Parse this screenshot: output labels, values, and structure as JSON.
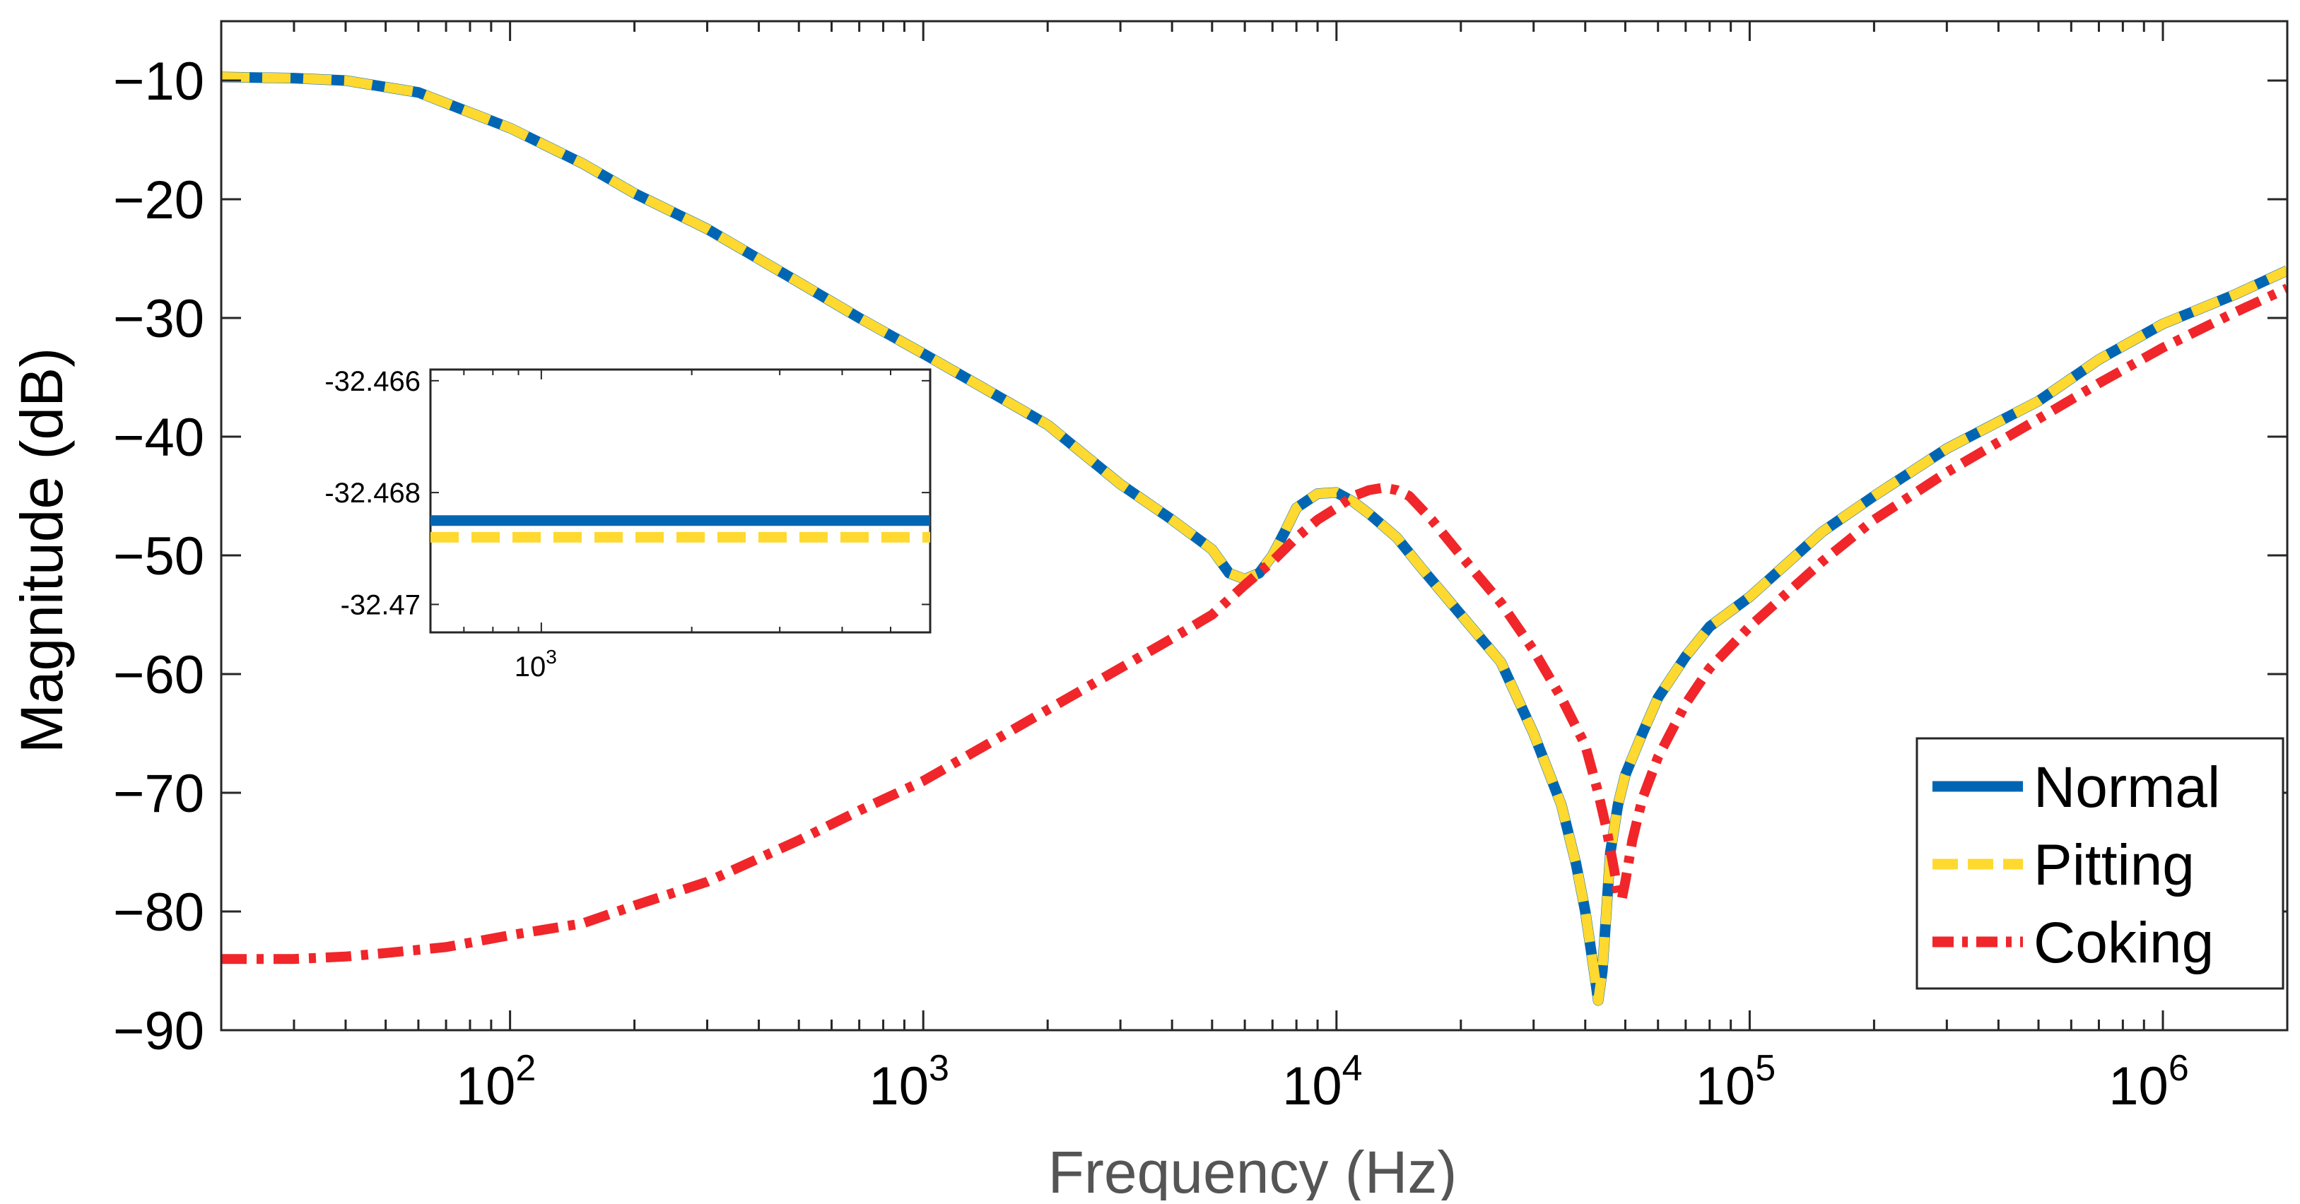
{
  "chart_data": {
    "type": "line",
    "title": "",
    "xlabel": "Frequency (Hz)",
    "ylabel": "Magnitude (dB)",
    "xscale": "log",
    "xlim": [
      20,
      2000000
    ],
    "ylim": [
      -90,
      -5
    ],
    "grid": false,
    "legend_position": "bottom-right",
    "x_ticks": [
      {
        "value": 100,
        "base": "10",
        "exp": "2"
      },
      {
        "value": 1000,
        "base": "10",
        "exp": "3"
      },
      {
        "value": 10000,
        "base": "10",
        "exp": "4"
      },
      {
        "value": 100000,
        "base": "10",
        "exp": "5"
      },
      {
        "value": 1000000,
        "base": "10",
        "exp": "6"
      }
    ],
    "y_ticks": [
      {
        "value": -10,
        "label": "−10"
      },
      {
        "value": -20,
        "label": "−20"
      },
      {
        "value": -30,
        "label": "−30"
      },
      {
        "value": -40,
        "label": "−40"
      },
      {
        "value": -50,
        "label": "−50"
      },
      {
        "value": -60,
        "label": "−60"
      },
      {
        "value": -70,
        "label": "−70"
      },
      {
        "value": -80,
        "label": "−80"
      },
      {
        "value": -90,
        "label": "−90"
      }
    ],
    "series": [
      {
        "name": "Normal",
        "color": "#0066B3",
        "style": "solid",
        "x": [
          20,
          30,
          40,
          60,
          100,
          150,
          200,
          300,
          500,
          700,
          1000,
          1500,
          2000,
          3000,
          4000,
          5000,
          5500,
          6000,
          6500,
          7000,
          7500,
          8000,
          9000,
          10000,
          11000,
          12000,
          14000,
          16000,
          20000,
          25000,
          30000,
          35000,
          38000,
          40000,
          42000,
          43000,
          44000,
          45000,
          46000,
          48000,
          50000,
          55000,
          60000,
          70000,
          80000,
          100000,
          150000,
          200000,
          300000,
          500000,
          700000,
          1000000,
          1500000,
          2000000
        ],
        "y": [
          -9.7,
          -9.8,
          -10.0,
          -11.0,
          -14.0,
          -17.0,
          -19.5,
          -22.5,
          -27.0,
          -30.0,
          -33.0,
          -36.5,
          -39.0,
          -44.0,
          -47.0,
          -49.5,
          -51.5,
          -52.0,
          -51.5,
          -50.0,
          -48.0,
          -46.0,
          -44.8,
          -44.7,
          -45.5,
          -46.5,
          -48.5,
          -51.0,
          -55.0,
          -59.0,
          -65.0,
          -71.0,
          -76.0,
          -80.0,
          -85.0,
          -87.5,
          -85.0,
          -80.0,
          -75.0,
          -71.0,
          -68.5,
          -65.0,
          -62.0,
          -58.5,
          -56.0,
          -53.5,
          -48.0,
          -45.0,
          -41.0,
          -37.0,
          -33.5,
          -30.5,
          -28.0,
          -26.0
        ]
      },
      {
        "name": "Pitting",
        "color": "#FFD92F",
        "style": "dashed",
        "x": [
          20,
          30,
          40,
          60,
          100,
          150,
          200,
          300,
          500,
          700,
          1000,
          1500,
          2000,
          3000,
          4000,
          5000,
          5500,
          6000,
          6500,
          7000,
          7500,
          8000,
          9000,
          10000,
          11000,
          12000,
          14000,
          16000,
          20000,
          25000,
          30000,
          35000,
          38000,
          40000,
          42000,
          43000,
          44000,
          45000,
          46000,
          48000,
          50000,
          55000,
          60000,
          70000,
          80000,
          100000,
          150000,
          200000,
          300000,
          500000,
          700000,
          1000000,
          1500000,
          2000000
        ],
        "y": [
          -9.7,
          -9.8,
          -10.0,
          -11.0,
          -14.0,
          -17.0,
          -19.5,
          -22.5,
          -27.0,
          -30.0,
          -33.0,
          -36.5,
          -39.0,
          -44.0,
          -47.0,
          -49.5,
          -51.5,
          -52.0,
          -51.5,
          -50.0,
          -48.0,
          -46.0,
          -44.8,
          -44.7,
          -45.5,
          -46.5,
          -48.5,
          -51.0,
          -55.0,
          -59.0,
          -65.0,
          -71.0,
          -76.0,
          -80.0,
          -85.0,
          -87.5,
          -85.0,
          -80.0,
          -75.0,
          -71.0,
          -68.5,
          -65.0,
          -62.0,
          -58.5,
          -56.0,
          -53.5,
          -48.0,
          -45.0,
          -41.0,
          -37.0,
          -33.5,
          -30.5,
          -28.0,
          -26.0
        ]
      },
      {
        "name": "Coking",
        "color": "#F0262A",
        "style": "dashdot",
        "x": [
          20,
          30,
          40,
          50,
          70,
          100,
          150,
          200,
          300,
          500,
          700,
          1000,
          1500,
          2000,
          3000,
          4000,
          5000,
          6000,
          7000,
          8000,
          9000,
          10000,
          11000,
          12000,
          13000,
          14000,
          15000,
          17000,
          20000,
          25000,
          30000,
          35000,
          40000,
          43000,
          45000,
          47000,
          48000,
          49000,
          50000,
          52000,
          55000,
          60000,
          70000,
          80000,
          100000,
          150000,
          200000,
          300000,
          500000,
          700000,
          1000000,
          1500000,
          2000000
        ],
        "y": [
          -84.0,
          -84.0,
          -83.8,
          -83.5,
          -83.0,
          -82.0,
          -81.0,
          -79.5,
          -77.5,
          -74.0,
          -71.5,
          -69.0,
          -65.5,
          -63.0,
          -59.5,
          -57.0,
          -55.0,
          -52.5,
          -50.5,
          -48.5,
          -47.0,
          -46.0,
          -45.0,
          -44.5,
          -44.3,
          -44.5,
          -45.0,
          -47.0,
          -50.0,
          -54.0,
          -58.0,
          -62.0,
          -66.0,
          -70.0,
          -73.0,
          -76.5,
          -78.5,
          -79.0,
          -77.5,
          -74.0,
          -70.5,
          -67.0,
          -62.5,
          -59.5,
          -56.0,
          -50.5,
          -47.0,
          -43.0,
          -38.5,
          -35.5,
          -32.5,
          -29.5,
          -27.5
        ]
      }
    ],
    "inset": {
      "type": "line",
      "xscale": "log",
      "xlim": [
        600,
        6000
      ],
      "ylim": [
        -32.4705,
        -32.4658
      ],
      "x_ticks": [
        {
          "value": 1000,
          "base": "10",
          "exp": "3"
        }
      ],
      "y_ticks": [
        {
          "value": -32.466,
          "label": "-32.466"
        },
        {
          "value": -32.468,
          "label": "-32.468"
        },
        {
          "value": -32.47,
          "label": "-32.47"
        }
      ],
      "series": [
        {
          "name": "Normal",
          "color": "#0066B3",
          "style": "solid",
          "x": [
            600,
            6000
          ],
          "y": [
            -32.4685,
            -32.4685
          ]
        },
        {
          "name": "Pitting",
          "color": "#FFD92F",
          "style": "dashed",
          "x": [
            600,
            6000
          ],
          "y": [
            -32.4688,
            -32.4688
          ]
        }
      ]
    }
  }
}
